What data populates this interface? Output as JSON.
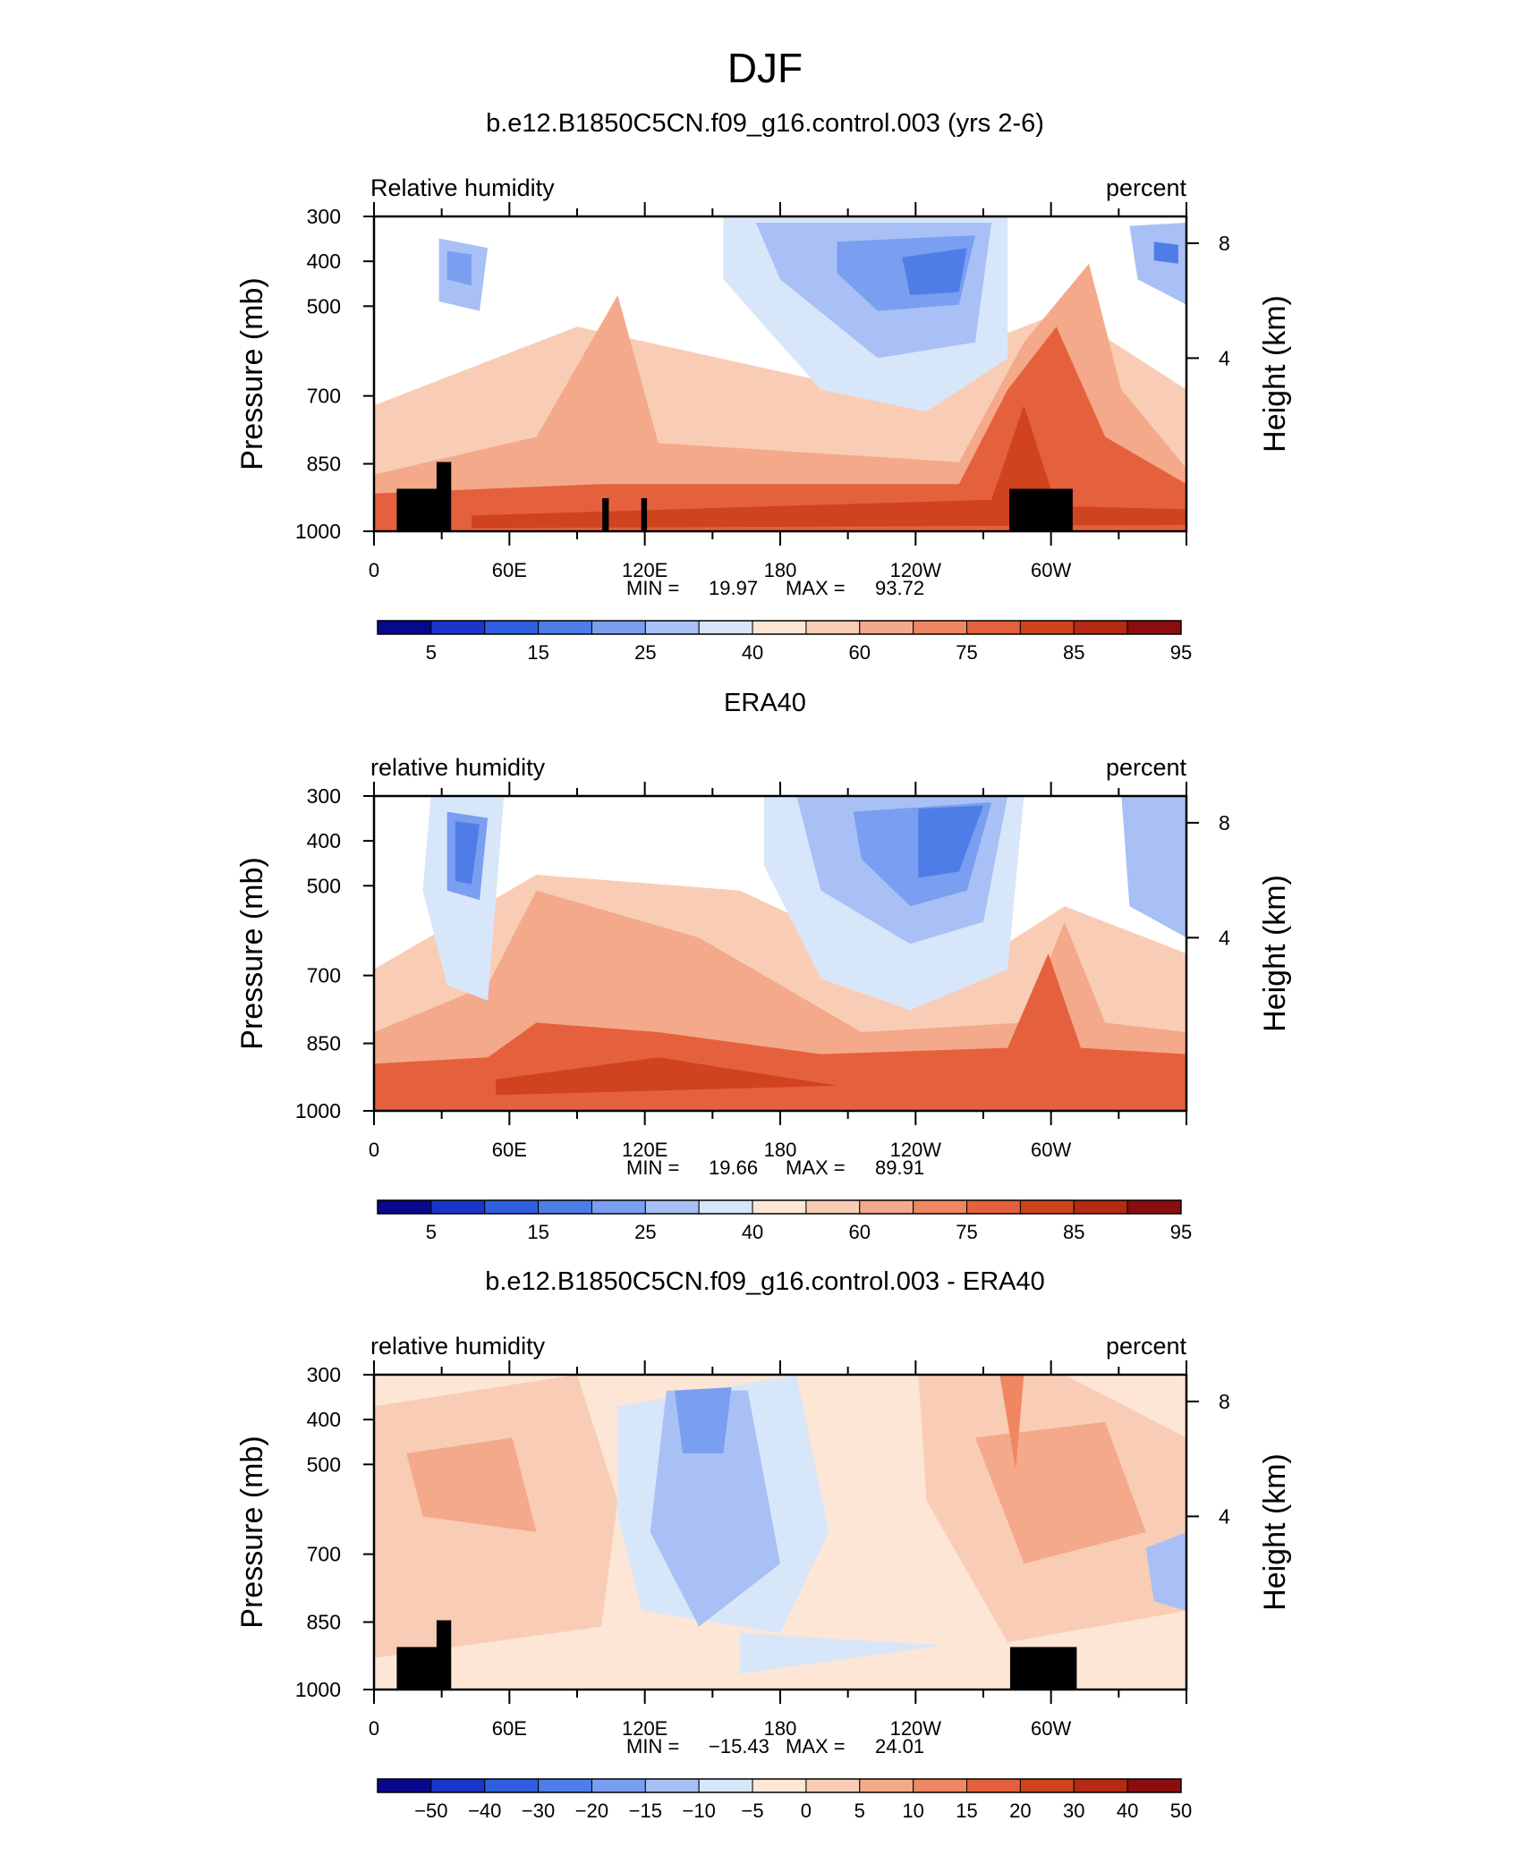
{
  "page": {
    "title": "DJF"
  },
  "chart_data": [
    {
      "type": "heatmap",
      "title": "b.e12.B1850C5CN.f09_g16.control.003 (yrs 2-6)",
      "left_label": "Relative humidity",
      "right_label": "percent",
      "ylabel": "Pressure (mb)",
      "ylabel_right": "Height (km)",
      "y_ticks": [
        "300",
        "400",
        "500",
        "700",
        "850",
        "1000"
      ],
      "y_ticks_right": [
        "8",
        "4"
      ],
      "x_ticks": [
        "0",
        "60E",
        "120E",
        "180",
        "120W",
        "60W"
      ],
      "stats": {
        "min_label": "MIN =",
        "min": "19.97",
        "max_label": "MAX =",
        "max": "93.72"
      },
      "colorbar_labels": [
        "5",
        "15",
        "25",
        "40",
        "60",
        "75",
        "85",
        "95"
      ],
      "grid": false
    },
    {
      "type": "heatmap",
      "title": "ERA40",
      "left_label": "relative humidity",
      "right_label": "percent",
      "ylabel": "Pressure (mb)",
      "ylabel_right": "Height (km)",
      "y_ticks": [
        "300",
        "400",
        "500",
        "700",
        "850",
        "1000"
      ],
      "y_ticks_right": [
        "8",
        "4"
      ],
      "x_ticks": [
        "0",
        "60E",
        "120E",
        "180",
        "120W",
        "60W"
      ],
      "stats": {
        "min_label": "MIN =",
        "min": "19.66",
        "max_label": "MAX =",
        "max": "89.91"
      },
      "colorbar_labels": [
        "5",
        "15",
        "25",
        "40",
        "60",
        "75",
        "85",
        "95"
      ],
      "grid": false
    },
    {
      "type": "heatmap",
      "title": "b.e12.B1850C5CN.f09_g16.control.003 - ERA40",
      "left_label": "relative humidity",
      "right_label": "percent",
      "ylabel": "Pressure (mb)",
      "ylabel_right": "Height (km)",
      "y_ticks": [
        "300",
        "400",
        "500",
        "700",
        "850",
        "1000"
      ],
      "y_ticks_right": [
        "8",
        "4"
      ],
      "x_ticks": [
        "0",
        "60E",
        "120E",
        "180",
        "120W",
        "60W"
      ],
      "stats": {
        "min_label": "MIN =",
        "min": "−15.43",
        "max_label": "MAX =",
        "max": "24.01"
      },
      "colorbar_labels": [
        "−50",
        "−40",
        "−30",
        "−20",
        "−15",
        "−10",
        "−5",
        "0",
        "5",
        "10",
        "15",
        "20",
        "30",
        "40",
        "50"
      ],
      "grid": false
    }
  ],
  "colors": {
    "scale": [
      "#08088c",
      "#1a35c8",
      "#2f5fe0",
      "#4f7de8",
      "#7a9ef0",
      "#a8c0f5",
      "#d8e6fa",
      "#fde6d6",
      "#f9cdb5",
      "#f4a98a",
      "#ee8762",
      "#e5613d",
      "#d0431f",
      "#b42a12",
      "#8c0d0d"
    ]
  }
}
